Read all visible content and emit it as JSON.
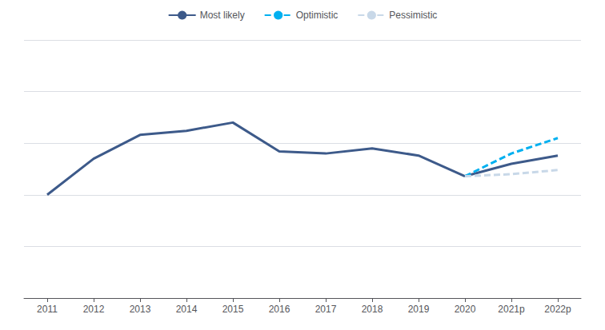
{
  "chart_data": {
    "type": "line",
    "xlim": [
      2010.5,
      2022.5
    ],
    "xticks": [
      2011,
      2012,
      2013,
      2014,
      2015,
      2016,
      2017,
      2018,
      2019,
      2020,
      {
        "value": 2021,
        "label": "2021p"
      },
      {
        "value": 2022,
        "label": "2022p"
      }
    ],
    "ylim": [
      0,
      25
    ],
    "yticks": [
      0,
      5,
      10,
      15,
      20,
      25
    ],
    "grid": true,
    "tick_labels": "x",
    "legend": "top",
    "series": [
      {
        "name": "Most likely",
        "color": "#3D5A8A",
        "line_style": "solid",
        "x": [
          2011,
          2012,
          2013,
          2014,
          2015,
          2016,
          2017,
          2018,
          2019,
          2020
        ],
        "values": [
          10.0,
          13.5,
          15.8,
          16.2,
          17.0,
          14.2,
          14.0,
          14.5,
          13.8,
          11.8
        ]
      },
      {
        "name": "Most likely",
        "color": "#3D5A8A",
        "line_style": "solid",
        "x": [
          2020,
          2021,
          2022
        ],
        "values": [
          11.8,
          13.0,
          13.8
        ]
      },
      {
        "name": "Optimistic",
        "color": "#00B0F0",
        "line_style": "dashed",
        "x": [
          2020,
          2021,
          2022
        ],
        "values": [
          11.8,
          14.0,
          15.5
        ]
      },
      {
        "name": "Pessimistic",
        "color": "#C8D8E8",
        "line_style": "dashed",
        "x": [
          2020,
          2021,
          2022
        ],
        "values": [
          11.8,
          12.0,
          12.4
        ]
      }
    ]
  }
}
